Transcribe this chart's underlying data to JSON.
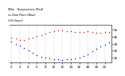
{
  "title": "Milw   Temperature (Red)",
  "subtitle": "vs Dew Point (Blue)",
  "subtitle2": "(24 Hours)",
  "hours": [
    0,
    1,
    2,
    3,
    4,
    5,
    6,
    7,
    8,
    9,
    10,
    11,
    12,
    13,
    14,
    15,
    16,
    17,
    18,
    19,
    20,
    21,
    22,
    23
  ],
  "temp": [
    44,
    43,
    41,
    40,
    43,
    44,
    46,
    47,
    50,
    52,
    53,
    54,
    54,
    53,
    53,
    52,
    52,
    52,
    53,
    52,
    51,
    51,
    52,
    52
  ],
  "dew": [
    38,
    35,
    32,
    29,
    25,
    22,
    19,
    16,
    15,
    14,
    13,
    13,
    12,
    13,
    13,
    14,
    15,
    17,
    20,
    24,
    28,
    31,
    34,
    37
  ],
  "temp_color": "#cc0000",
  "dew_color": "#0000cc",
  "bg_color": "#ffffff",
  "grid_color": "#888888",
  "ylim_min": 8,
  "ylim_max": 62,
  "ytick_values": [
    15,
    25,
    35,
    45,
    55
  ],
  "ytick_labels": [
    "15",
    "25",
    "35",
    "45",
    "55"
  ],
  "xtick_positions": [
    0,
    2,
    4,
    6,
    8,
    10,
    12,
    14,
    16,
    18,
    20,
    22
  ],
  "xtick_labels": [
    "0",
    "2",
    "4",
    "6",
    "8",
    "10",
    "12",
    "14",
    "16",
    "18",
    "20",
    "22"
  ],
  "vgrid_positions": [
    0,
    2,
    4,
    6,
    8,
    10,
    12,
    14,
    16,
    18,
    20,
    22
  ],
  "tick_fontsize": 3.0,
  "title_fontsize": 2.5,
  "marker_size": 1.0
}
